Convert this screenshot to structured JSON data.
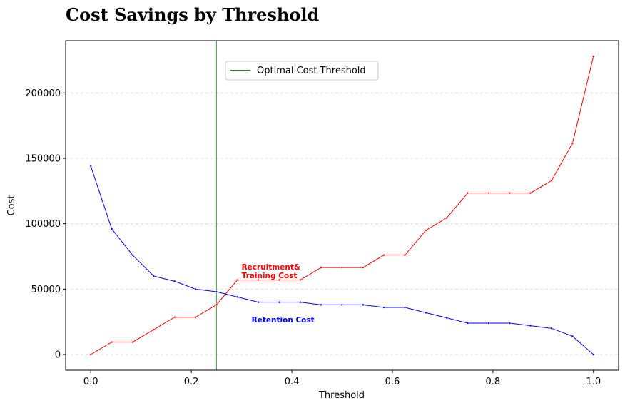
{
  "chart_data": {
    "type": "line",
    "title": "Cost Savings by Threshold",
    "xlabel": "Threshold",
    "ylabel": "Cost",
    "xlim": [
      -0.05,
      1.05
    ],
    "ylim": [
      -12000,
      240000
    ],
    "xticks": [
      0.0,
      0.2,
      0.4,
      0.6,
      0.8,
      1.0
    ],
    "xtick_labels": [
      "0.0",
      "0.2",
      "0.4",
      "0.6",
      "0.8",
      "1.0"
    ],
    "yticks": [
      0,
      50000,
      100000,
      150000,
      200000
    ],
    "ytick_labels": [
      "0",
      "50000",
      "100000",
      "150000",
      "200000"
    ],
    "grid": "y-dashed",
    "legend_position": "upper-center",
    "x": [
      0.0,
      0.0417,
      0.0833,
      0.125,
      0.1667,
      0.2083,
      0.25,
      0.2917,
      0.3333,
      0.375,
      0.4167,
      0.4583,
      0.5,
      0.5417,
      0.5833,
      0.625,
      0.6667,
      0.7083,
      0.75,
      0.7917,
      0.8333,
      0.875,
      0.9167,
      0.9583,
      1.0
    ],
    "series": [
      {
        "name": "Recruitment& Training Cost",
        "color": "#ff0000",
        "values": [
          0,
          9500,
          9500,
          19000,
          28500,
          28500,
          38000,
          57000,
          57000,
          57000,
          57000,
          66500,
          66500,
          66500,
          76000,
          76000,
          95000,
          104500,
          123500,
          123500,
          123500,
          123500,
          133000,
          161500,
          228000
        ]
      },
      {
        "name": "Retention Cost",
        "color": "#0000ff",
        "values": [
          144000,
          96000,
          76000,
          60000,
          56000,
          50000,
          48000,
          44000,
          40000,
          40000,
          40000,
          38000,
          38000,
          38000,
          36000,
          36000,
          32000,
          28000,
          24000,
          24000,
          24000,
          22000,
          20000,
          14000,
          0
        ]
      }
    ],
    "vline": {
      "x": 0.25,
      "color": "#228b22",
      "label": "Optimal Cost Threshold"
    },
    "annotations": [
      {
        "lines": [
          "Recruitment&",
          "Training Cost"
        ],
        "x": 0.3,
        "y": 58500,
        "color": "#ff0000"
      },
      {
        "lines": [
          "Retention Cost"
        ],
        "x": 0.32,
        "y": 24500,
        "color": "#0000ff"
      }
    ]
  }
}
